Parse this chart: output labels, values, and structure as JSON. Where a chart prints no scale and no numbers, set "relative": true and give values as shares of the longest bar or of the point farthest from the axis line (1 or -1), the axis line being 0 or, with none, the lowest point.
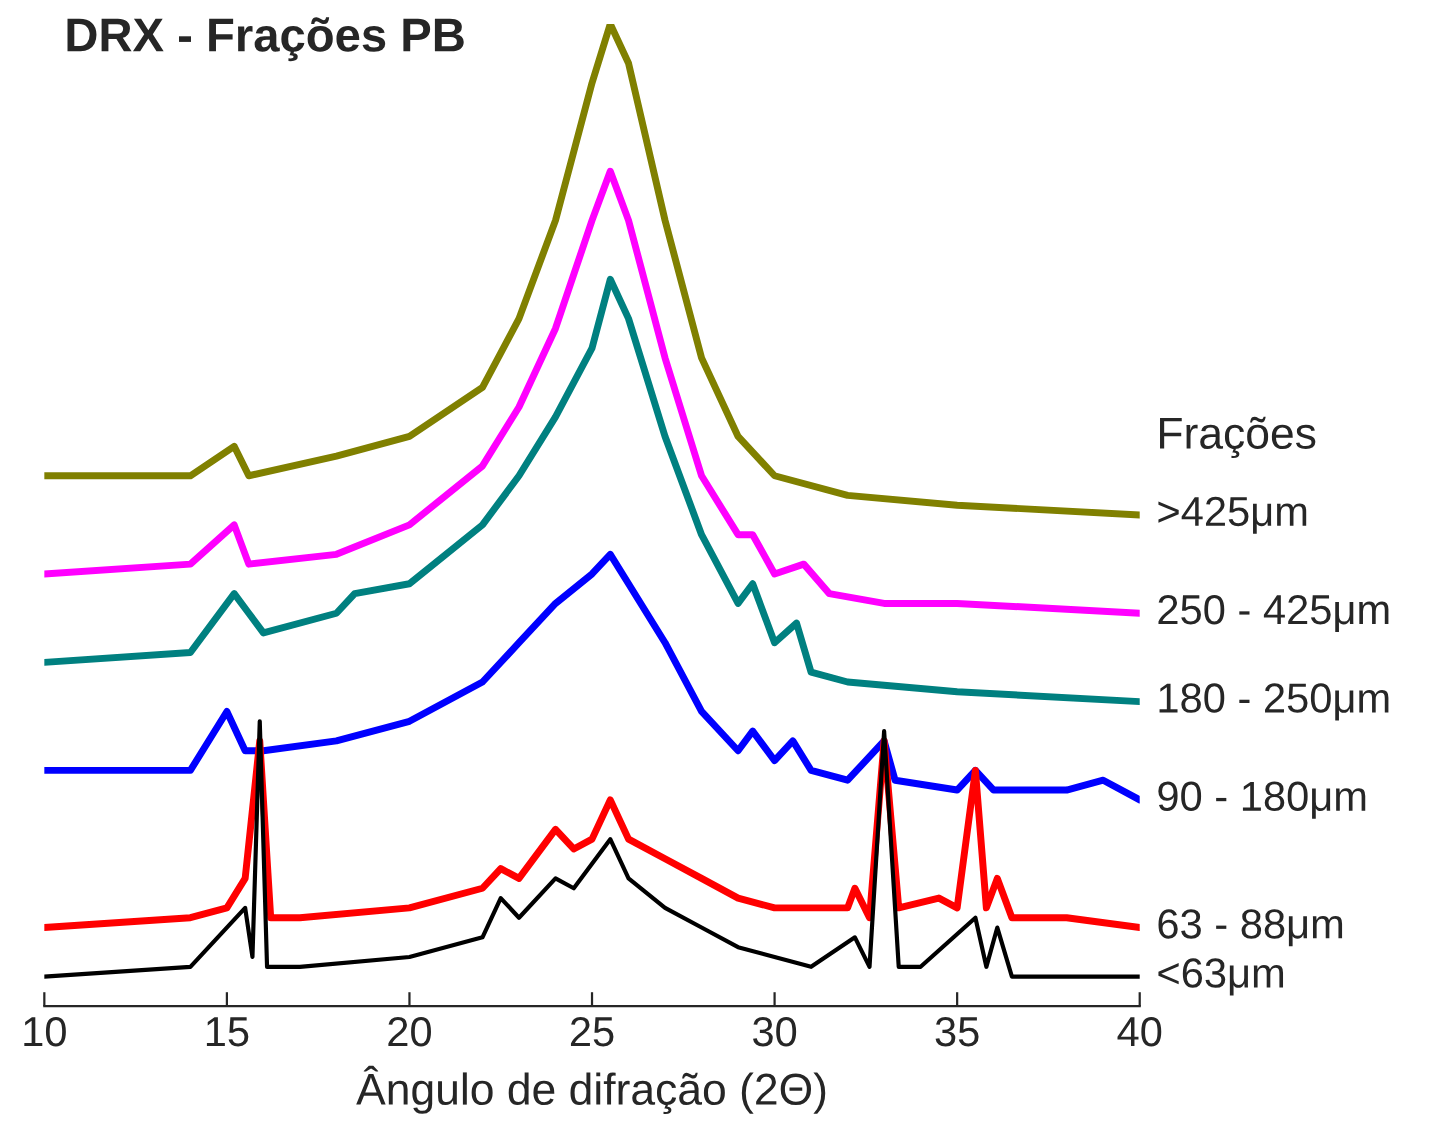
{
  "chart_data": {
    "type": "line",
    "title": "DRX - Frações PB",
    "xlabel": "Ângulo de difração (2Θ)",
    "legend_title": "Frações",
    "relative": true,
    "legend": false,
    "xlim": [
      10,
      40
    ],
    "xticks": [
      10,
      15,
      20,
      25,
      30,
      35,
      40
    ],
    "series": [
      {
        "name": ">425μm",
        "color": "#808000",
        "x": [
          10,
          14,
          15.2,
          15.6,
          18,
          20,
          22,
          23,
          24,
          25,
          25.5,
          26,
          27,
          28,
          29,
          30,
          32,
          35,
          40
        ],
        "values": [
          0.54,
          0.54,
          0.57,
          0.54,
          0.56,
          0.58,
          0.63,
          0.7,
          0.8,
          0.94,
          1.0,
          0.96,
          0.8,
          0.66,
          0.58,
          0.54,
          0.52,
          0.51,
          0.5
        ]
      },
      {
        "name": "250 - 425μm",
        "color": "#ff00ff",
        "x": [
          10,
          14,
          15.2,
          15.6,
          18,
          20,
          22,
          23,
          24,
          25,
          25.5,
          26,
          27,
          28,
          29,
          29.4,
          30,
          30.8,
          31.5,
          33,
          35,
          40
        ],
        "values": [
          0.44,
          0.45,
          0.49,
          0.45,
          0.46,
          0.49,
          0.55,
          0.61,
          0.69,
          0.8,
          0.85,
          0.8,
          0.66,
          0.54,
          0.48,
          0.48,
          0.44,
          0.45,
          0.42,
          0.41,
          0.41,
          0.4
        ]
      },
      {
        "name": "180 - 250μm",
        "color": "#008080",
        "x": [
          10,
          14,
          15.2,
          15.6,
          16,
          18,
          18.5,
          20,
          22,
          23,
          24,
          25,
          25.5,
          26,
          27,
          28,
          29,
          29.4,
          30,
          30.6,
          31,
          32,
          35,
          40
        ],
        "values": [
          0.35,
          0.36,
          0.42,
          0.4,
          0.38,
          0.4,
          0.42,
          0.43,
          0.49,
          0.54,
          0.6,
          0.67,
          0.74,
          0.7,
          0.58,
          0.48,
          0.41,
          0.43,
          0.37,
          0.39,
          0.34,
          0.33,
          0.32,
          0.31
        ]
      },
      {
        "name": "90 - 180μm",
        "color": "#0000ff",
        "x": [
          10,
          14,
          15,
          15.5,
          16,
          18,
          20,
          22,
          23,
          24,
          25,
          25.5,
          26,
          27,
          28,
          29,
          29.4,
          30,
          30.5,
          31,
          32,
          33,
          33.3,
          35,
          35.5,
          36,
          38,
          39,
          40
        ],
        "values": [
          0.24,
          0.24,
          0.3,
          0.26,
          0.26,
          0.27,
          0.29,
          0.33,
          0.37,
          0.41,
          0.44,
          0.46,
          0.43,
          0.37,
          0.3,
          0.26,
          0.28,
          0.25,
          0.27,
          0.24,
          0.23,
          0.27,
          0.23,
          0.22,
          0.24,
          0.22,
          0.22,
          0.23,
          0.21
        ]
      },
      {
        "name": "63 - 88μm",
        "color": "#ff0000",
        "x": [
          10,
          14,
          15,
          15.5,
          15.9,
          16.2,
          17,
          20,
          22,
          22.5,
          23,
          24,
          24.5,
          25,
          25.5,
          26,
          27,
          28,
          29,
          30,
          32,
          32.2,
          32.6,
          33,
          33.4,
          34.5,
          35,
          35.5,
          35.8,
          36.1,
          36.5,
          38,
          40
        ],
        "values": [
          0.08,
          0.09,
          0.1,
          0.13,
          0.27,
          0.09,
          0.09,
          0.1,
          0.12,
          0.14,
          0.13,
          0.18,
          0.16,
          0.17,
          0.21,
          0.17,
          0.15,
          0.13,
          0.11,
          0.1,
          0.1,
          0.12,
          0.09,
          0.27,
          0.1,
          0.11,
          0.1,
          0.24,
          0.1,
          0.13,
          0.09,
          0.09,
          0.08
        ]
      },
      {
        "name": "<63μm",
        "color": "#000000",
        "x": [
          10,
          14,
          15.5,
          15.7,
          15.9,
          16.1,
          17,
          20,
          22,
          22.5,
          23,
          24,
          24.5,
          25.5,
          26,
          27,
          28,
          29,
          30,
          31,
          32.2,
          32.6,
          33,
          33.4,
          34,
          35.5,
          35.8,
          36.1,
          36.5,
          38,
          40
        ],
        "values": [
          0.03,
          0.04,
          0.1,
          0.05,
          0.29,
          0.04,
          0.04,
          0.05,
          0.07,
          0.11,
          0.09,
          0.13,
          0.12,
          0.17,
          0.13,
          0.1,
          0.08,
          0.06,
          0.05,
          0.04,
          0.07,
          0.04,
          0.28,
          0.04,
          0.04,
          0.09,
          0.04,
          0.08,
          0.03,
          0.03,
          0.03
        ]
      }
    ]
  }
}
